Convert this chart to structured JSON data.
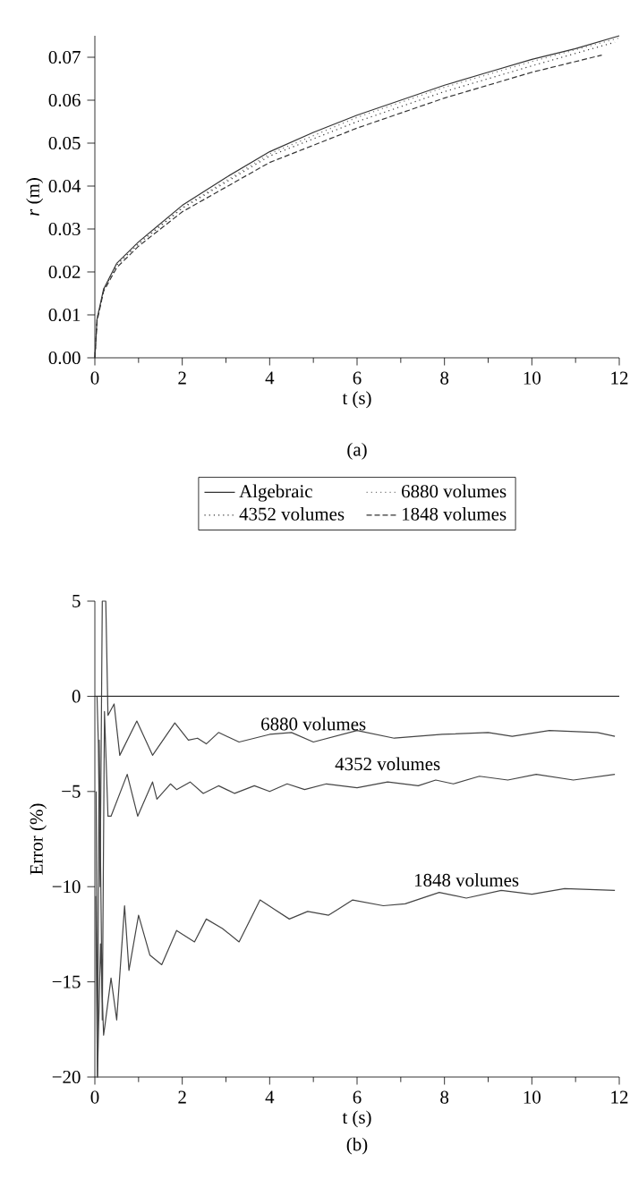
{
  "chart_data": [
    {
      "type": "line",
      "xlabel": "t (s)",
      "ylabel": "*r* (m)",
      "annotations": [
        "(a)"
      ],
      "xlim": [
        0,
        12
      ],
      "ylim": [
        0,
        0.075
      ],
      "xticks": [
        0,
        2,
        4,
        6,
        8,
        10,
        12
      ],
      "yticks": [
        {
          "value": 0,
          "label": "0.00"
        },
        {
          "value": 0.01,
          "label": "0.01"
        },
        {
          "value": 0.02,
          "label": "0.02"
        },
        {
          "value": 0.03,
          "label": "0.03"
        },
        {
          "value": 0.04,
          "label": "0.04"
        },
        {
          "value": 0.05,
          "label": "0.05"
        },
        {
          "value": 0.06,
          "label": "0.06"
        },
        {
          "value": 0.07,
          "label": "0.07"
        }
      ],
      "legend": "bottom",
      "grid": false,
      "marker": "none",
      "series": [
        {
          "name": "Algebraic",
          "color": "#333333",
          "line_style": "solid",
          "x": [
            0,
            0.05,
            0.2,
            0.5,
            1,
            2,
            3,
            4,
            5,
            6,
            7,
            8,
            9,
            10,
            11,
            12
          ],
          "values": [
            0,
            0.009,
            0.016,
            0.022,
            0.027,
            0.0355,
            0.042,
            0.048,
            0.0525,
            0.0565,
            0.06,
            0.0635,
            0.0665,
            0.0695,
            0.072,
            0.075
          ]
        },
        {
          "name": "6880 volumes",
          "color": "#777777",
          "line_style": "dotted",
          "x": [
            0,
            0.05,
            0.2,
            0.5,
            1,
            2,
            4,
            6,
            8,
            10,
            12
          ],
          "values": [
            0,
            0.009,
            0.016,
            0.0218,
            0.0268,
            0.035,
            0.0475,
            0.056,
            0.063,
            0.069,
            0.0745
          ]
        },
        {
          "name": "4352 volumes",
          "color": "#333333",
          "line_style": "dotted",
          "x": [
            0,
            0.05,
            0.2,
            0.5,
            1,
            2,
            4,
            6,
            8,
            10,
            11.9
          ],
          "values": [
            0,
            0.009,
            0.0158,
            0.0216,
            0.0265,
            0.0348,
            0.047,
            0.055,
            0.062,
            0.068,
            0.0735
          ]
        },
        {
          "name": "1848 volumes",
          "color": "#333333",
          "line_style": "dashed",
          "x": [
            0,
            0.05,
            0.2,
            0.5,
            1,
            2,
            4,
            6,
            8,
            10,
            11.6
          ],
          "values": [
            0,
            0.0085,
            0.0155,
            0.021,
            0.026,
            0.034,
            0.0455,
            0.0535,
            0.0605,
            0.0665,
            0.0705
          ]
        }
      ]
    },
    {
      "type": "line",
      "xlabel": "t (s)",
      "ylabel": "Error (%)",
      "xlim": [
        0,
        12
      ],
      "ylim": [
        -20,
        5
      ],
      "xticks": [
        0,
        2,
        4,
        6,
        8,
        10,
        12
      ],
      "yticks": [
        {
          "value": -20,
          "label": "−20"
        },
        {
          "value": -15,
          "label": "−15"
        },
        {
          "value": -10,
          "label": "−10"
        },
        {
          "value": -5,
          "label": "−5"
        },
        0,
        5
      ],
      "grid": false,
      "marker": "none",
      "legend": false,
      "ref_lines": [
        {
          "axis": "y",
          "value": 0,
          "color": "#333333"
        }
      ],
      "annotations": [
        "(b)"
      ],
      "series": [
        {
          "name": "6880 volumes",
          "color": "#444444",
          "line_style": "solid",
          "x": [
            0.05,
            0.08,
            0.12,
            0.17,
            0.25,
            0.3,
            0.44,
            0.57,
            0.96,
            1.32,
            1.83,
            2.14,
            2.35,
            2.55,
            2.83,
            3.3,
            4.0,
            4.5,
            5.0,
            6.0,
            6.85,
            7.95,
            9.0,
            9.55,
            10.4,
            11.5,
            11.9
          ],
          "values": [
            0,
            -2.5,
            -10,
            5,
            5,
            -1,
            -0.4,
            -3.1,
            -1.3,
            -3.1,
            -1.4,
            -2.3,
            -2.2,
            -2.5,
            -1.9,
            -2.4,
            -2.0,
            -1.9,
            -2.4,
            -1.8,
            -2.2,
            -2.0,
            -1.9,
            -2.1,
            -1.8,
            -1.9,
            -2.1
          ]
        },
        {
          "name": "4352 volumes",
          "color": "#444444",
          "line_style": "solid",
          "x": [
            0.03,
            0.06,
            0.1,
            0.17,
            0.22,
            0.3,
            0.37,
            0.74,
            0.98,
            1.32,
            1.42,
            1.73,
            1.87,
            2.18,
            2.48,
            2.83,
            3.2,
            3.65,
            4.0,
            4.4,
            4.8,
            5.3,
            6.0,
            6.7,
            7.4,
            7.8,
            8.2,
            8.8,
            9.45,
            10.1,
            10.95,
            11.9
          ],
          "values": [
            -5,
            -20,
            -2.3,
            -17,
            -0.8,
            -6.3,
            -6.3,
            -4.1,
            -6.3,
            -4.5,
            -5.4,
            -4.6,
            -4.9,
            -4.5,
            -5.1,
            -4.7,
            -5.1,
            -4.7,
            -5.0,
            -4.6,
            -4.9,
            -4.6,
            -4.8,
            -4.5,
            -4.7,
            -4.4,
            -4.6,
            -4.2,
            -4.4,
            -4.1,
            -4.4,
            -4.1
          ]
        },
        {
          "name": "1848 volumes",
          "color": "#444444",
          "line_style": "solid",
          "x": [
            0.02,
            0.06,
            0.13,
            0.2,
            0.23,
            0.37,
            0.5,
            0.68,
            0.78,
            1.0,
            1.26,
            1.53,
            1.87,
            2.28,
            2.55,
            2.92,
            3.3,
            3.78,
            4.45,
            4.87,
            5.35,
            5.9,
            6.6,
            7.1,
            7.88,
            8.5,
            9.3,
            10.0,
            10.75,
            11.9
          ],
          "values": [
            -10.5,
            -20,
            -13,
            -17.8,
            -17.3,
            -14.8,
            -17.0,
            -11,
            -14.4,
            -11.5,
            -13.6,
            -14.1,
            -12.3,
            -12.9,
            -11.7,
            -12.2,
            -12.9,
            -10.7,
            -11.7,
            -11.3,
            -11.5,
            -10.7,
            -11.0,
            -10.9,
            -10.3,
            -10.6,
            -10.2,
            -10.4,
            -10.1,
            -10.2
          ]
        }
      ]
    }
  ]
}
